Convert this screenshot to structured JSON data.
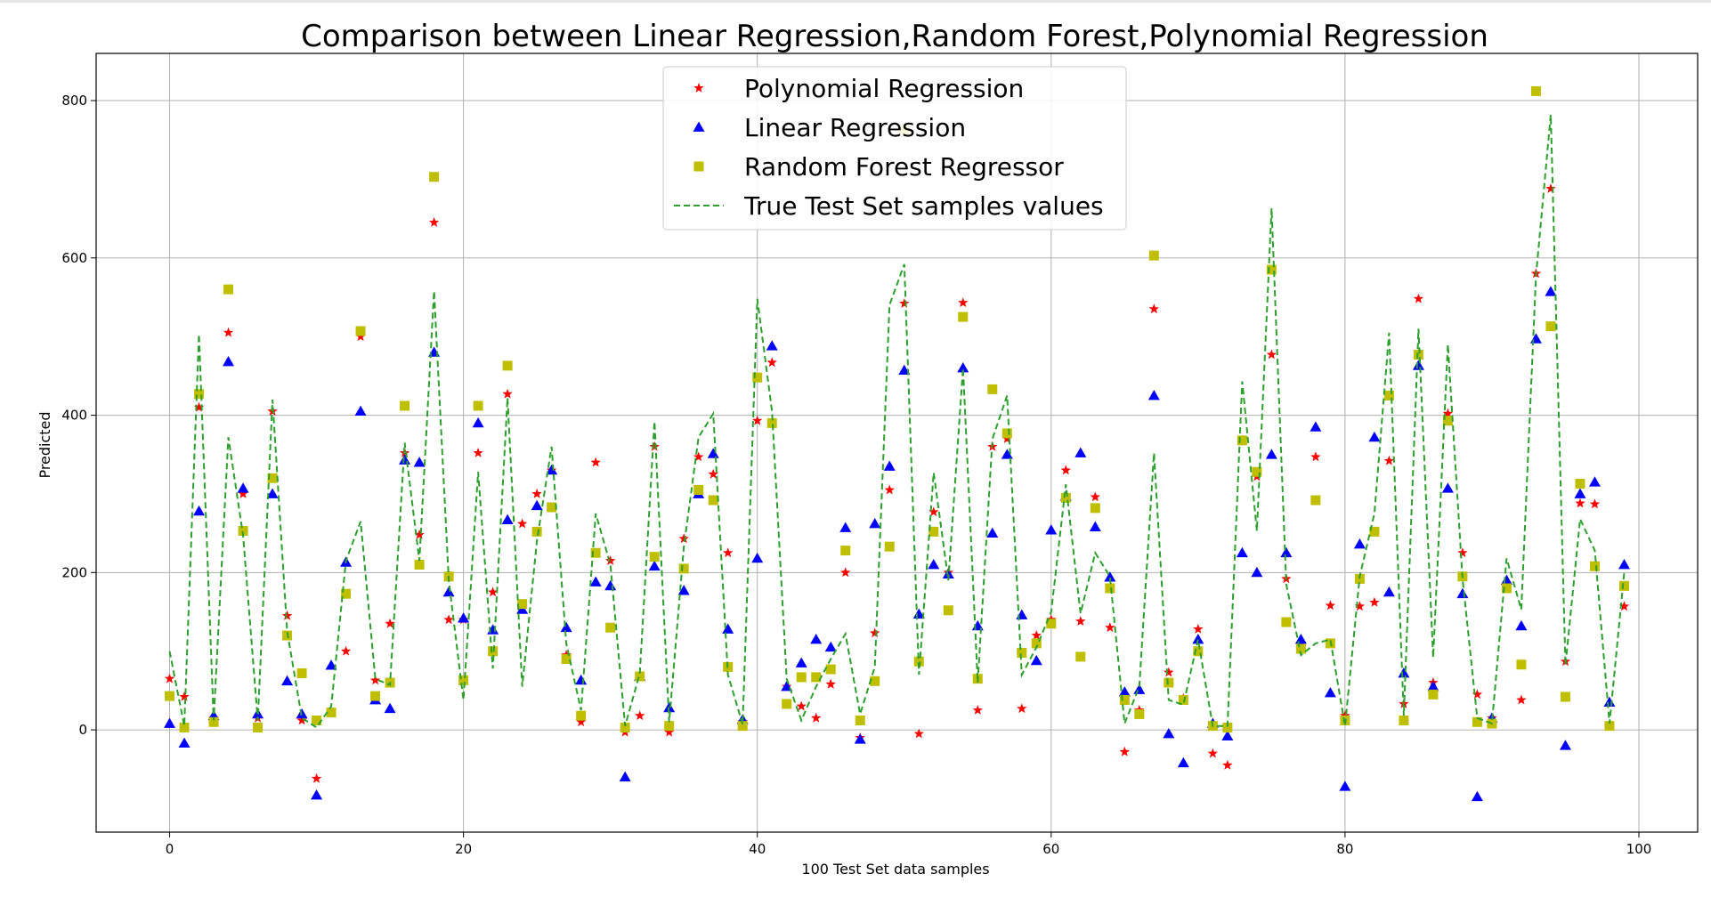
{
  "chart_data": {
    "type": "scatter",
    "title": "Comparison between Linear Regression,Random Forest,Polynomial Regression",
    "xlabel": "100 Test Set data samples",
    "ylabel": "Predicted",
    "xlim": [
      -5,
      104
    ],
    "ylim": [
      -130,
      860
    ],
    "xticks": [
      0,
      20,
      40,
      60,
      80,
      100
    ],
    "yticks": [
      0,
      200,
      400,
      600,
      800
    ],
    "grid": true,
    "legend_position": "top-center",
    "series": [
      {
        "name": "Polynomial Regression",
        "marker": "star",
        "color": "#ff0000",
        "values": [
          65,
          42,
          410,
          15,
          505,
          300,
          15,
          405,
          145,
          12,
          -62,
          22,
          100,
          500,
          63,
          135,
          352,
          248,
          645,
          140,
          140,
          352,
          175,
          427,
          262,
          300,
          330,
          95,
          10,
          340,
          215,
          -3,
          18,
          360,
          -3,
          243,
          347,
          325,
          225,
          10,
          393,
          467,
          55,
          30,
          15,
          58,
          200,
          -10,
          123,
          305,
          542,
          -5,
          277,
          200,
          543,
          25,
          360,
          370,
          27,
          120,
          140,
          330,
          138,
          296,
          130,
          -28,
          25,
          535,
          73,
          40,
          128,
          -30,
          -45,
          368,
          322,
          477,
          192,
          110,
          347,
          158,
          18,
          157,
          162,
          342,
          33,
          548,
          60,
          402,
          225,
          45,
          15,
          185,
          38,
          580,
          688,
          87,
          288,
          287,
          5,
          157
        ]
      },
      {
        "name": "Linear Regression",
        "marker": "triangle",
        "color": "#0000ff",
        "values": [
          8,
          -17,
          278,
          18,
          468,
          307,
          20,
          300,
          62,
          20,
          -83,
          82,
          213,
          405,
          38,
          27,
          343,
          340,
          480,
          175,
          142,
          390,
          127,
          267,
          153,
          285,
          330,
          130,
          63,
          188,
          183,
          -60,
          68,
          208,
          28,
          177,
          300,
          351,
          128,
          13,
          218,
          488,
          55,
          85,
          115,
          105,
          257,
          -12,
          262,
          335,
          457,
          147,
          210,
          198,
          460,
          132,
          250,
          350,
          146,
          88,
          254,
          297,
          352,
          258,
          194,
          48,
          51,
          425,
          -5,
          -42,
          115,
          8,
          -8,
          225,
          200,
          350,
          225,
          115,
          385,
          47,
          -72,
          236,
          372,
          175,
          72,
          463,
          55,
          307,
          173,
          -85,
          15,
          190,
          132,
          497,
          557,
          -20,
          300,
          315,
          35,
          210
        ]
      },
      {
        "name": "Random Forest Regressor",
        "marker": "square",
        "color": "#bfbf00",
        "values": [
          43,
          3,
          427,
          10,
          560,
          253,
          3,
          320,
          120,
          72,
          12,
          22,
          173,
          507,
          43,
          60,
          412,
          210,
          703,
          195,
          63,
          412,
          100,
          463,
          160,
          252,
          283,
          90,
          18,
          225,
          130,
          3,
          68,
          220,
          5,
          205,
          305,
          292,
          80,
          5,
          448,
          390,
          33,
          67,
          67,
          77,
          228,
          12,
          62,
          233,
          763,
          87,
          252,
          152,
          525,
          65,
          433,
          377,
          98,
          110,
          135,
          295,
          93,
          282,
          180,
          38,
          20,
          603,
          60,
          38,
          100,
          5,
          3,
          368,
          328,
          585,
          137,
          103,
          292,
          110,
          12,
          192,
          252,
          425,
          12,
          477,
          45,
          393,
          195,
          10,
          8,
          180,
          83,
          812,
          513,
          42,
          313,
          208,
          5,
          183
        ]
      },
      {
        "name": "True Test Set samples values",
        "marker": "dashed-line",
        "color": "#2ca02c",
        "values": [
          100,
          5,
          503,
          12,
          372,
          248,
          12,
          420,
          125,
          15,
          3,
          30,
          215,
          265,
          65,
          57,
          365,
          215,
          558,
          190,
          38,
          328,
          78,
          422,
          55,
          240,
          360,
          110,
          25,
          275,
          210,
          5,
          72,
          392,
          10,
          233,
          372,
          402,
          70,
          7,
          548,
          405,
          65,
          12,
          55,
          90,
          122,
          20,
          80,
          540,
          592,
          70,
          327,
          190,
          460,
          60,
          370,
          425,
          70,
          105,
          150,
          312,
          148,
          225,
          195,
          8,
          55,
          352,
          38,
          32,
          115,
          5,
          5,
          443,
          253,
          663,
          185,
          95,
          110,
          115,
          5,
          195,
          275,
          505,
          18,
          510,
          92,
          490,
          192,
          15,
          8,
          218,
          153,
          577,
          782,
          82,
          268,
          228,
          8,
          200
        ]
      }
    ]
  }
}
